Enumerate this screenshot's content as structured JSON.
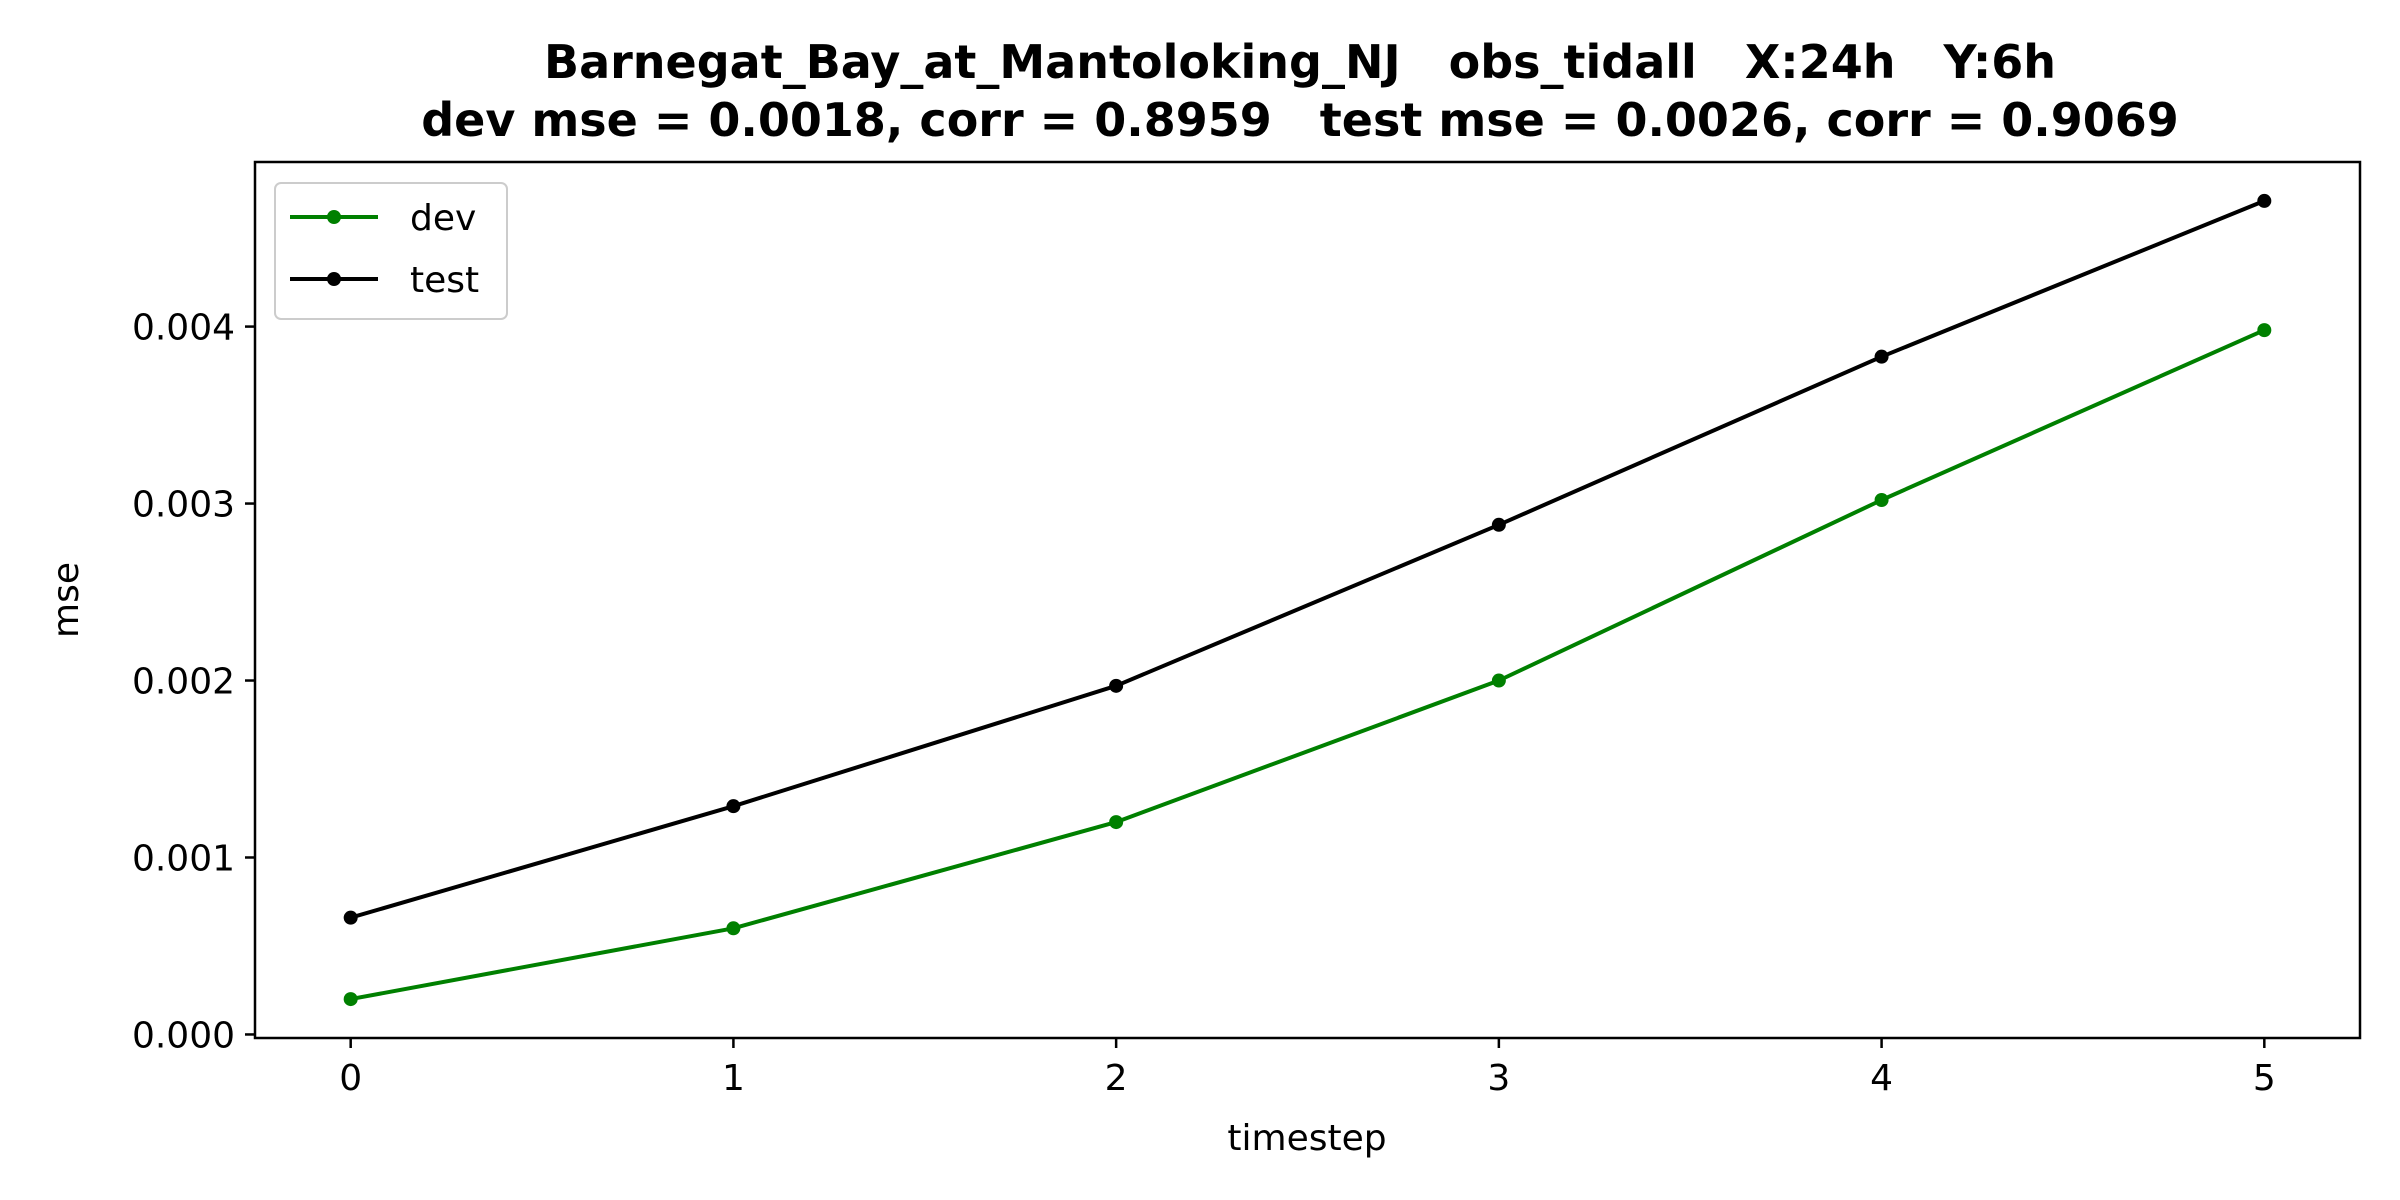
{
  "chart_data": {
    "type": "line",
    "title": "Barnegat_Bay_at_Mantoloking_NJ   obs_tidall   X:24h   Y:6h",
    "subtitle": "dev mse = 0.0018, corr = 0.8959   test mse = 0.0026, corr = 0.9069",
    "xlabel": "timestep",
    "ylabel": "mse",
    "x": [
      0,
      1,
      2,
      3,
      4,
      5
    ],
    "x_tick_labels": [
      "0",
      "1",
      "2",
      "3",
      "4",
      "5"
    ],
    "y_ticks": [
      0.0,
      0.001,
      0.002,
      0.003,
      0.004
    ],
    "y_tick_labels": [
      "0.000",
      "0.001",
      "0.002",
      "0.003",
      "0.004"
    ],
    "xlim": [
      -0.25,
      5.25
    ],
    "ylim": [
      -2e-05,
      0.00493
    ],
    "grid": false,
    "legend_position": "top-left",
    "series": [
      {
        "name": "dev",
        "color": "#008000",
        "values": [
          0.0002,
          0.0006,
          0.0012,
          0.002,
          0.00302,
          0.00398
        ]
      },
      {
        "name": "test",
        "color": "#000000",
        "values": [
          0.00066,
          0.00129,
          0.00197,
          0.00288,
          0.00383,
          0.00471
        ]
      }
    ]
  }
}
